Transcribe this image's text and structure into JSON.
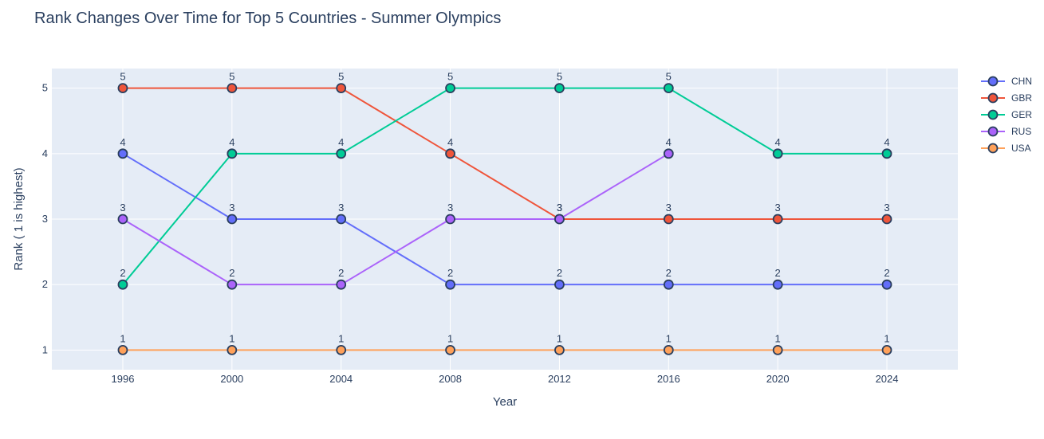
{
  "chart_data": {
    "type": "line",
    "title": "Rank Changes Over Time for Top 5 Countries - Summer Olympics",
    "xlabel": "Year",
    "ylabel": "Rank ( 1 is highest)",
    "x": [
      1996,
      2000,
      2004,
      2008,
      2012,
      2016,
      2020,
      2024
    ],
    "x_ticks": [
      "1996",
      "2000",
      "2004",
      "2008",
      "2012",
      "2016",
      "2020",
      "2024"
    ],
    "y_ticks": [
      "1",
      "2",
      "3",
      "4",
      "5"
    ],
    "y_reversed": true,
    "ylim": [
      5.3,
      0.7
    ],
    "xlim": [
      1993.4,
      2026.6
    ],
    "grid": true,
    "legend_position": "right",
    "series": [
      {
        "name": "CHN",
        "color": "#636efa",
        "values": [
          4,
          3,
          3,
          2,
          2,
          2,
          2,
          2
        ]
      },
      {
        "name": "GBR",
        "color": "#ef553b",
        "values": [
          5,
          5,
          5,
          4,
          3,
          3,
          3,
          3
        ]
      },
      {
        "name": "GER",
        "color": "#00cc96",
        "values": [
          2,
          4,
          4,
          5,
          5,
          5,
          4,
          4
        ]
      },
      {
        "name": "RUS",
        "color": "#ab63fa",
        "values": [
          3,
          2,
          2,
          3,
          3,
          4,
          null,
          null
        ]
      },
      {
        "name": "USA",
        "color": "#ffa15a",
        "values": [
          1,
          1,
          1,
          1,
          1,
          1,
          1,
          1
        ]
      }
    ],
    "plot_background": "#e5ecf6",
    "marker_outline": "#2a3f5f"
  }
}
